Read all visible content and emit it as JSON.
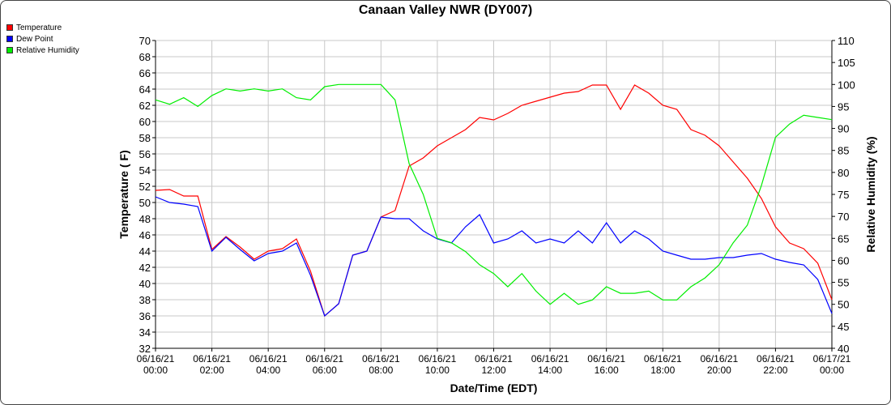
{
  "chart_data": {
    "type": "line",
    "title": "Canaan Valley NWR (DY007)",
    "xlabel": "Date/Time (EDT)",
    "ylabel": "Temperature ( F)",
    "y2label": "Relative Humidity (%)",
    "ylim": [
      32,
      70
    ],
    "y2lim": [
      40,
      110
    ],
    "xlim_hours": [
      0,
      24
    ],
    "grid": true,
    "legend_position": "top-left-outside",
    "yticks": [
      32,
      34,
      36,
      38,
      40,
      42,
      44,
      46,
      48,
      50,
      52,
      54,
      56,
      58,
      60,
      62,
      64,
      66,
      68,
      70
    ],
    "y2ticks": [
      40,
      45,
      50,
      55,
      60,
      65,
      70,
      75,
      80,
      85,
      90,
      95,
      100,
      105,
      110
    ],
    "xticks": [
      {
        "date": "06/16/21",
        "time": "00:00"
      },
      {
        "date": "06/16/21",
        "time": "02:00"
      },
      {
        "date": "06/16/21",
        "time": "04:00"
      },
      {
        "date": "06/16/21",
        "time": "06:00"
      },
      {
        "date": "06/16/21",
        "time": "08:00"
      },
      {
        "date": "06/16/21",
        "time": "10:00"
      },
      {
        "date": "06/16/21",
        "time": "12:00"
      },
      {
        "date": "06/16/21",
        "time": "14:00"
      },
      {
        "date": "06/16/21",
        "time": "16:00"
      },
      {
        "date": "06/16/21",
        "time": "18:00"
      },
      {
        "date": "06/16/21",
        "time": "20:00"
      },
      {
        "date": "06/16/21",
        "time": "22:00"
      },
      {
        "date": "06/17/21",
        "time": "00:00"
      }
    ],
    "x_hours": [
      0,
      0.5,
      1,
      1.5,
      2,
      2.5,
      3,
      3.5,
      4,
      4.5,
      5,
      5.5,
      6,
      6.5,
      7,
      7.5,
      8,
      8.5,
      9,
      9.5,
      10,
      10.5,
      11,
      11.5,
      12,
      12.5,
      13,
      13.5,
      14,
      14.5,
      15,
      15.5,
      16,
      16.5,
      17,
      17.5,
      18,
      18.5,
      19,
      19.5,
      20,
      20.5,
      21,
      21.5,
      22,
      22.5,
      23,
      23.5,
      24
    ],
    "series": [
      {
        "name": "Temperature",
        "axis": "left",
        "color": "#ff0000",
        "values": [
          51.5,
          51.6,
          50.8,
          50.8,
          44.2,
          45.8,
          44.5,
          43,
          44,
          44.3,
          45.5,
          41.5,
          36,
          37.5,
          43.5,
          44,
          48.2,
          49,
          54.5,
          55.5,
          57,
          58,
          59,
          60.5,
          60.2,
          61,
          62,
          62.5,
          63,
          63.5,
          63.7,
          64.5,
          64.5,
          61.5,
          64.5,
          63.5,
          62,
          61.5,
          59,
          58.3,
          57,
          55,
          53,
          50.5,
          47,
          45,
          44.3,
          42.5,
          38
        ]
      },
      {
        "name": "Dew Point",
        "axis": "left",
        "color": "#0000ff",
        "values": [
          50.7,
          50,
          49.8,
          49.5,
          44,
          45.7,
          44.2,
          42.8,
          43.7,
          44,
          45,
          41,
          36,
          37.5,
          43.5,
          44,
          48.2,
          48,
          48,
          46.5,
          45.5,
          45,
          47,
          48.5,
          45,
          45.5,
          46.5,
          45,
          45.5,
          45,
          46.5,
          45,
          47.5,
          45,
          46.5,
          45.5,
          44,
          43.5,
          43,
          43,
          43.2,
          43.2,
          43.5,
          43.7,
          43,
          42.6,
          42.3,
          40.5,
          36.3
        ]
      },
      {
        "name": "Relative Humidity",
        "axis": "right",
        "color": "#00ee00",
        "values": [
          96.5,
          95.5,
          97,
          95,
          97.5,
          99,
          98.5,
          99,
          98.5,
          99,
          97,
          96.5,
          99.5,
          100,
          100,
          100,
          100,
          96.5,
          82,
          75,
          65,
          64,
          62,
          59,
          57,
          54,
          57,
          53,
          50,
          52.5,
          50,
          51,
          54,
          52.5,
          52.5,
          53,
          51,
          51,
          54,
          56,
          59,
          64,
          68,
          77,
          88,
          91,
          93,
          92.5,
          92
        ]
      }
    ]
  }
}
